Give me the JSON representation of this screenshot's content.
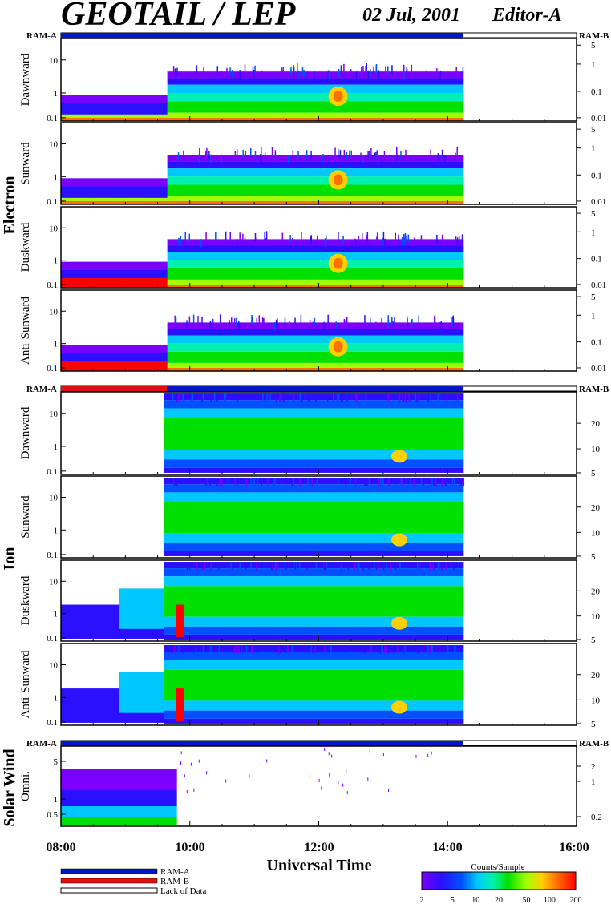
{
  "header": {
    "title": "GEOTAIL / LEP",
    "date": "02 Jul, 2001",
    "editor": "Editor-A"
  },
  "groups": {
    "electron": "Electron",
    "ion": "Ion",
    "solar_wind": "Solar Wind"
  },
  "ram_labels": {
    "ram_a": "RAM-A",
    "ram_b": "RAM-B"
  },
  "x_axis": {
    "label": "Universal Time",
    "ticks": [
      "08:00",
      "10:00",
      "12:00",
      "14:00",
      "16:00"
    ]
  },
  "legend": {
    "ram_a": "RAM-A",
    "ram_b": "RAM-B",
    "lack": "Lack of Data"
  },
  "colorbar": {
    "title": "Counts/Sample",
    "ticks": [
      "2",
      "5",
      "10",
      "20",
      "50",
      "100",
      "200"
    ]
  },
  "colors": {
    "ram_a": "#0018c8",
    "ram_b": "#e01010",
    "lack": "#ffffff"
  },
  "chart_data": [
    {
      "type": "heatmap",
      "panel": "electron-dawnward",
      "ylabel": "Dawnward",
      "yscale": "log",
      "yticks_left": [
        "10",
        "1",
        "0.1"
      ],
      "yticks_right": [
        "5",
        "1",
        "0.1",
        "0.01"
      ],
      "x_range_hours": [
        8,
        16
      ],
      "data_end_hour": 14.25
    },
    {
      "type": "heatmap",
      "panel": "electron-sunward",
      "ylabel": "Sunward",
      "yscale": "log",
      "yticks_left": [
        "10",
        "1",
        "0.1"
      ],
      "yticks_right": [
        "5",
        "1",
        "0.1",
        "0.01"
      ],
      "x_range_hours": [
        8,
        16
      ],
      "data_end_hour": 14.25
    },
    {
      "type": "heatmap",
      "panel": "electron-duskward",
      "ylabel": "Duskward",
      "yscale": "log",
      "yticks_left": [
        "10",
        "1",
        "0.1"
      ],
      "yticks_right": [
        "5",
        "1",
        "0.1",
        "0.01"
      ],
      "x_range_hours": [
        8,
        16
      ],
      "data_end_hour": 14.25
    },
    {
      "type": "heatmap",
      "panel": "electron-anti-sunward",
      "ylabel": "Anti-Sunward",
      "yscale": "log",
      "yticks_left": [
        "10",
        "1",
        "0.1"
      ],
      "yticks_right": [
        "5",
        "1",
        "0.1",
        "0.01"
      ],
      "x_range_hours": [
        8,
        16
      ],
      "data_end_hour": 14.25
    },
    {
      "type": "heatmap",
      "panel": "ion-dawnward",
      "ylabel": "Dawnward",
      "yscale": "log",
      "yticks_left": [
        "10",
        "1",
        "0.1"
      ],
      "yticks_right": [
        "20",
        "10",
        "5"
      ],
      "x_range_hours": [
        8,
        16
      ],
      "data_end_hour": 14.25
    },
    {
      "type": "heatmap",
      "panel": "ion-sunward",
      "ylabel": "Sunward",
      "yscale": "log",
      "yticks_left": [
        "10",
        "1",
        "0.1"
      ],
      "yticks_right": [
        "20",
        "10",
        "5"
      ],
      "x_range_hours": [
        8,
        16
      ],
      "data_end_hour": 14.25
    },
    {
      "type": "heatmap",
      "panel": "ion-duskward",
      "ylabel": "Duskward",
      "yscale": "log",
      "yticks_left": [
        "10",
        "1",
        "0.1"
      ],
      "yticks_right": [
        "20",
        "10",
        "5"
      ],
      "x_range_hours": [
        8,
        16
      ],
      "data_end_hour": 14.25
    },
    {
      "type": "heatmap",
      "panel": "ion-anti-sunward",
      "ylabel": "Anti-Sunward",
      "yscale": "log",
      "yticks_left": [
        "10",
        "1",
        "0.1"
      ],
      "yticks_right": [
        "20",
        "10",
        "5"
      ],
      "x_range_hours": [
        8,
        16
      ],
      "data_end_hour": 14.25
    },
    {
      "type": "heatmap",
      "panel": "solar-wind-omni",
      "ylabel": "Omni.",
      "yscale": "log",
      "yticks_left": [
        "5",
        "1",
        "0.5"
      ],
      "yticks_right": [
        "2",
        "1",
        "0.2"
      ],
      "x_range_hours": [
        8,
        16
      ],
      "data_end_hour": 9.8
    }
  ]
}
